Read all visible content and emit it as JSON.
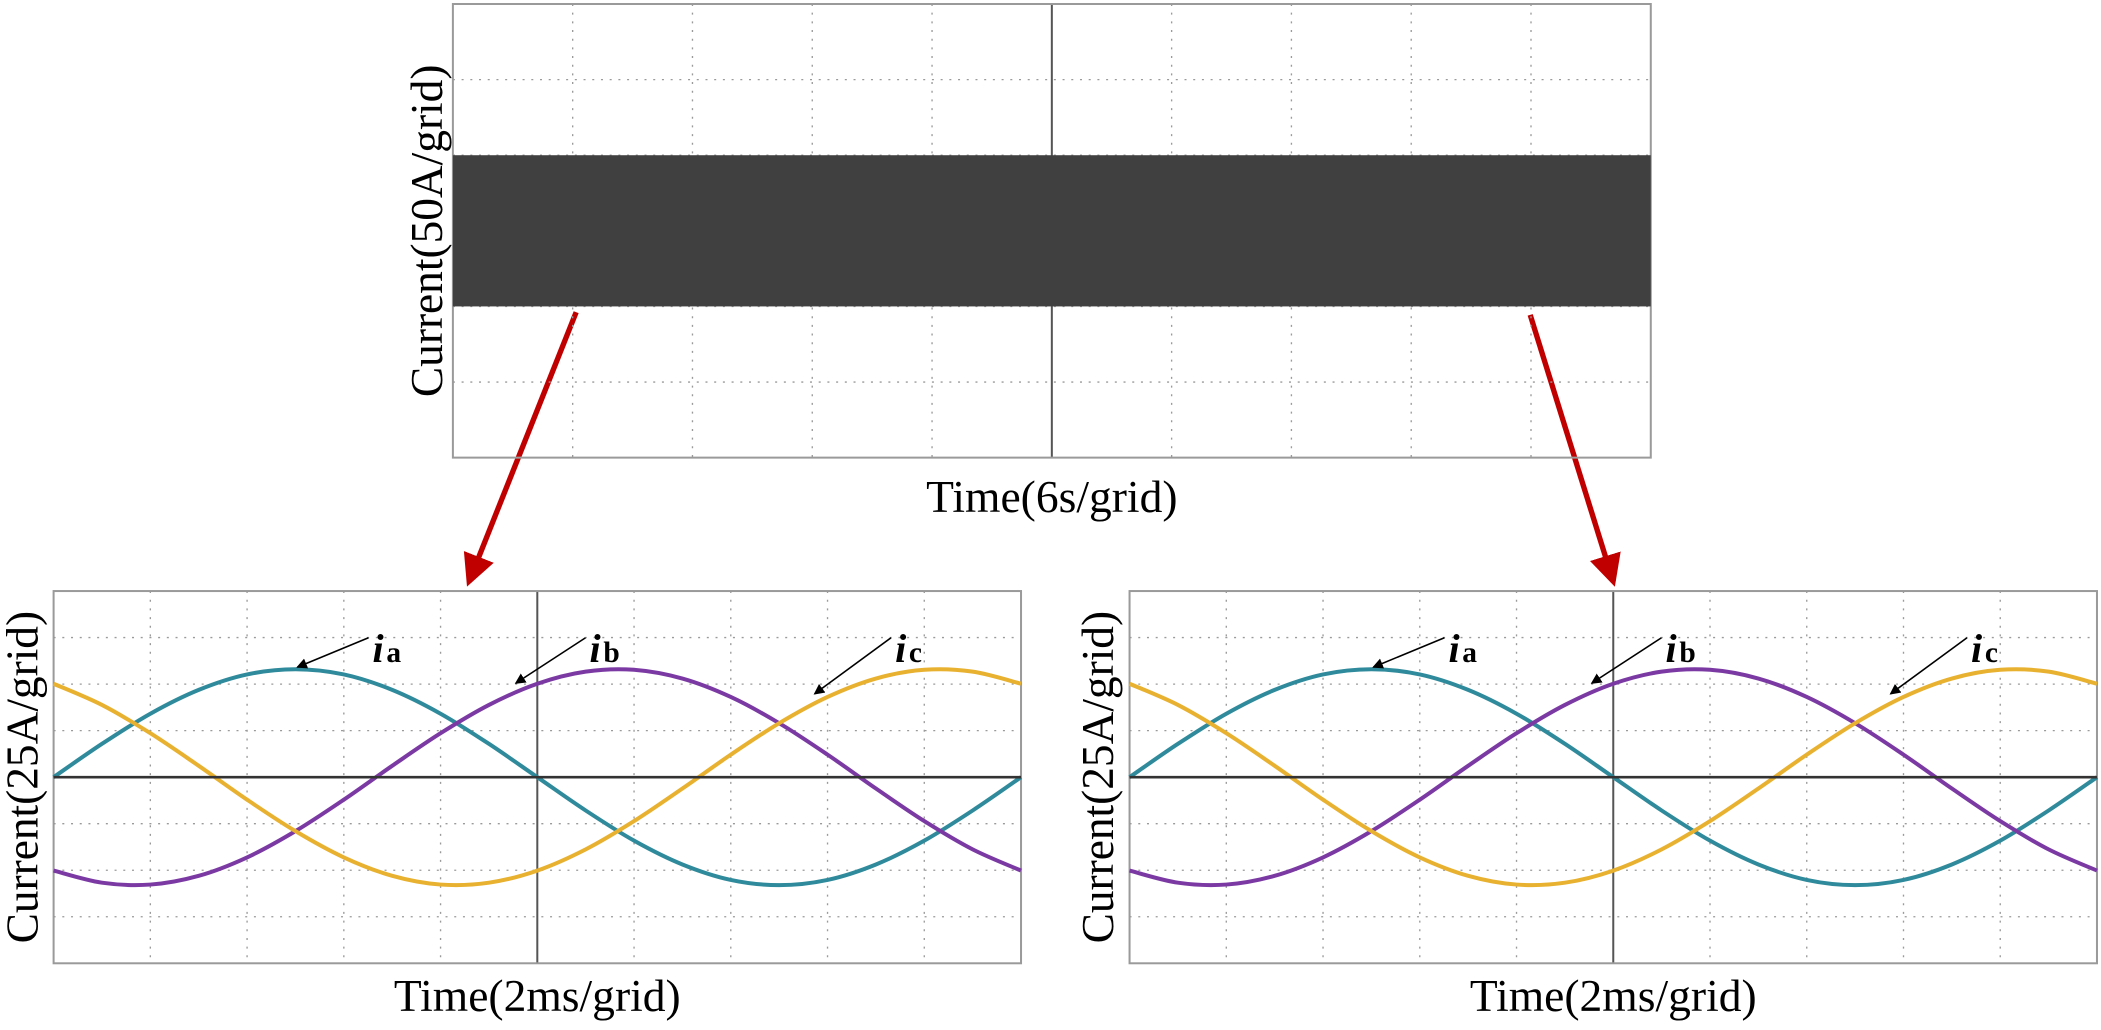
{
  "chart_data": [
    {
      "type": "band",
      "y_label": "Current(50A/grid)",
      "x_label": "Time(6s/grid)",
      "xlim": [
        0,
        60
      ],
      "ylim": [
        -150,
        150
      ],
      "values": [
        -50,
        50
      ],
      "color": "#404040"
    },
    {
      "type": "line",
      "y_label": "Current(25A/grid)",
      "x_label": "Time(2ms/grid)",
      "xlim": [
        0,
        20
      ],
      "ylim": [
        -100,
        100
      ],
      "x": [
        0,
        1,
        2,
        3,
        4,
        5,
        6,
        7,
        8,
        9,
        10,
        11,
        12,
        13,
        14,
        15,
        16,
        17,
        18,
        19,
        20
      ],
      "series": [
        {
          "color": "#2f8a9b",
          "values": [
            0,
            17.9,
            34.1,
            46.9,
            55.2,
            58,
            55.2,
            46.9,
            34.1,
            17.9,
            0,
            -17.9,
            -34.1,
            -46.9,
            -55.2,
            -58,
            -55.2,
            -46.9,
            -34.1,
            -17.9,
            0
          ]
        },
        {
          "color": "#7b3aa3",
          "values": [
            -50.2,
            -56.7,
            -57.7,
            -53.0,
            -43.1,
            -29,
            -12.1,
            6.1,
            23.6,
            38.8,
            50.2,
            56.7,
            57.7,
            53.0,
            43.1,
            29,
            12.1,
            -6.1,
            -23.6,
            -38.8,
            -50.2
          ]
        },
        {
          "color": "#e8b12f",
          "values": [
            50.2,
            38.8,
            23.6,
            6.1,
            -12.1,
            -29,
            -43.1,
            -53.0,
            -57.7,
            -56.7,
            -50.2,
            -38.8,
            -23.6,
            -6.1,
            12.1,
            29,
            43.1,
            53.0,
            57.7,
            56.7,
            50.2
          ]
        }
      ],
      "annotations": [
        {
          "text": "i",
          "subscript": "a"
        },
        {
          "text": "i",
          "subscript": "b"
        },
        {
          "text": "i",
          "subscript": "c"
        }
      ]
    },
    {
      "type": "line",
      "y_label": "Current(25A/grid)",
      "x_label": "Time(2ms/grid)",
      "xlim": [
        0,
        20
      ],
      "ylim": [
        -100,
        100
      ],
      "x": [
        0,
        1,
        2,
        3,
        4,
        5,
        6,
        7,
        8,
        9,
        10,
        11,
        12,
        13,
        14,
        15,
        16,
        17,
        18,
        19,
        20
      ],
      "series": [
        {
          "color": "#2f8a9b",
          "values": [
            0,
            17.9,
            34.1,
            46.9,
            55.2,
            58,
            55.2,
            46.9,
            34.1,
            17.9,
            0,
            -17.9,
            -34.1,
            -46.9,
            -55.2,
            -58,
            -55.2,
            -46.9,
            -34.1,
            -17.9,
            0
          ]
        },
        {
          "color": "#7b3aa3",
          "values": [
            -50.2,
            -56.7,
            -57.7,
            -53.0,
            -43.1,
            -29,
            -12.1,
            6.1,
            23.6,
            38.8,
            50.2,
            56.7,
            57.7,
            53.0,
            43.1,
            29,
            12.1,
            -6.1,
            -23.6,
            -38.8,
            -50.2
          ]
        },
        {
          "color": "#e8b12f",
          "values": [
            50.2,
            38.8,
            23.6,
            6.1,
            -12.1,
            -29,
            -43.1,
            -53.0,
            -57.7,
            -56.7,
            -50.2,
            -38.8,
            -23.6,
            -6.1,
            12.1,
            29,
            43.1,
            53.0,
            57.7,
            56.7,
            50.2
          ]
        }
      ],
      "annotations": [
        {
          "text": "i",
          "subscript": "a"
        },
        {
          "text": "i",
          "subscript": "b"
        },
        {
          "text": "i",
          "subscript": "c"
        }
      ]
    }
  ]
}
